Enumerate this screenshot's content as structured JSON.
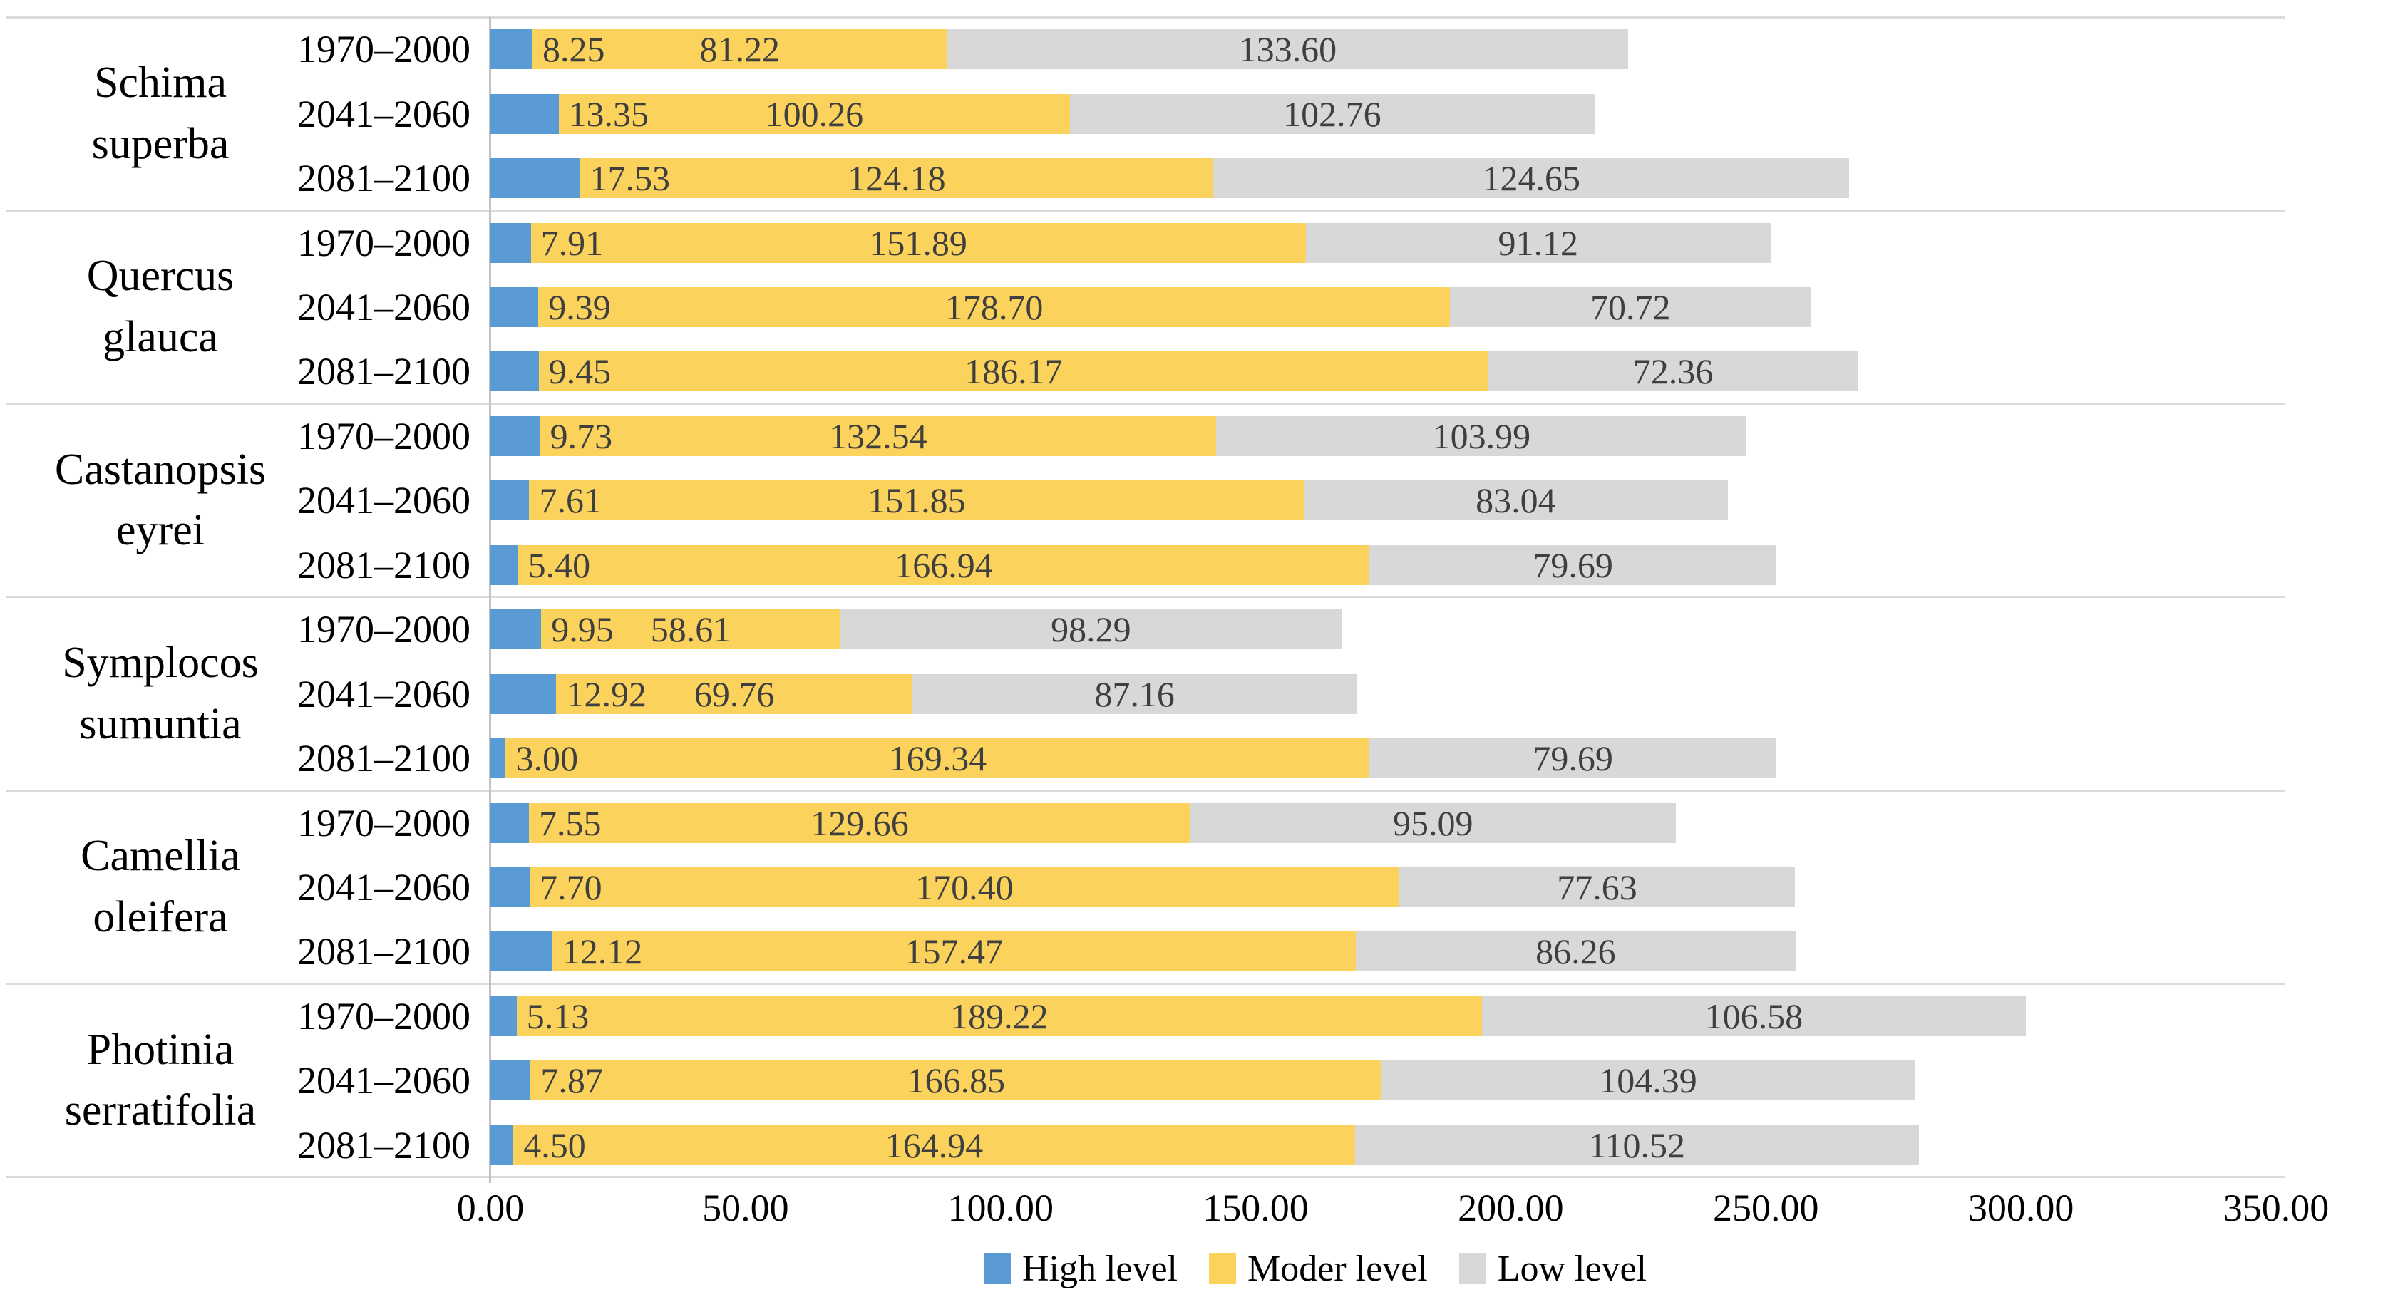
{
  "chart_data": {
    "type": "bar",
    "stacked": true,
    "orientation": "horizontal",
    "title": "",
    "xlabel": "",
    "ylabel": "",
    "xlim": [
      0,
      350
    ],
    "x_ticks": [
      "0.00",
      "50.00",
      "100.00",
      "150.00",
      "200.00",
      "250.00",
      "300.00",
      "350.00"
    ],
    "grid": false,
    "value_label_decimals": 2,
    "legend": {
      "position": "bottom",
      "entries": [
        {
          "key": "high",
          "label": "High level",
          "color": "#5b9bd5"
        },
        {
          "key": "moder",
          "label": "Moder level",
          "color": "#fbd35c"
        },
        {
          "key": "low",
          "label": "Low level",
          "color": "#d8d8d8"
        }
      ]
    },
    "groups": [
      {
        "species": [
          "Schima",
          "superba"
        ],
        "rows": [
          {
            "period": "1970–2000",
            "high": 8.25,
            "moder": 81.22,
            "low": 133.6
          },
          {
            "period": "2041–2060",
            "high": 13.35,
            "moder": 100.26,
            "low": 102.76
          },
          {
            "period": "2081–2100",
            "high": 17.53,
            "moder": 124.18,
            "low": 124.65
          }
        ]
      },
      {
        "species": [
          "Quercus",
          "glauca"
        ],
        "rows": [
          {
            "period": "1970–2000",
            "high": 7.91,
            "moder": 151.89,
            "low": 91.12
          },
          {
            "period": "2041–2060",
            "high": 9.39,
            "moder": 178.7,
            "low": 70.72
          },
          {
            "period": "2081–2100",
            "high": 9.45,
            "moder": 186.17,
            "low": 72.36
          }
        ]
      },
      {
        "species": [
          "Castanopsis",
          "eyrei"
        ],
        "rows": [
          {
            "period": "1970–2000",
            "high": 9.73,
            "moder": 132.54,
            "low": 103.99
          },
          {
            "period": "2041–2060",
            "high": 7.61,
            "moder": 151.85,
            "low": 83.04
          },
          {
            "period": "2081–2100",
            "high": 5.4,
            "moder": 166.94,
            "low": 79.69
          }
        ]
      },
      {
        "species": [
          "Symplocos",
          "sumuntia"
        ],
        "rows": [
          {
            "period": "1970–2000",
            "high": 9.95,
            "moder": 58.61,
            "low": 98.29
          },
          {
            "period": "2041–2060",
            "high": 12.92,
            "moder": 69.76,
            "low": 87.16
          },
          {
            "period": "2081–2100",
            "high": 3.0,
            "moder": 169.34,
            "low": 79.69
          }
        ]
      },
      {
        "species": [
          "Camellia",
          "oleifera"
        ],
        "rows": [
          {
            "period": "1970–2000",
            "high": 7.55,
            "moder": 129.66,
            "low": 95.09
          },
          {
            "period": "2041–2060",
            "high": 7.7,
            "moder": 170.4,
            "low": 77.63
          },
          {
            "period": "2081–2100",
            "high": 12.12,
            "moder": 157.47,
            "low": 86.26
          }
        ]
      },
      {
        "species": [
          "Photinia",
          "serratifolia"
        ],
        "rows": [
          {
            "period": "1970–2000",
            "high": 5.13,
            "moder": 189.22,
            "low": 106.58
          },
          {
            "period": "2041–2060",
            "high": 7.87,
            "moder": 166.85,
            "low": 104.39
          },
          {
            "period": "2081–2100",
            "high": 4.5,
            "moder": 164.94,
            "low": 110.52
          }
        ]
      }
    ]
  }
}
